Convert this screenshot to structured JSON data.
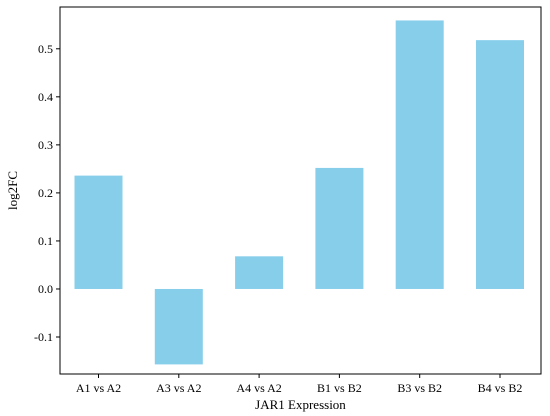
{
  "chart_data": {
    "type": "bar",
    "categories": [
      "A1 vs A2",
      "A3 vs A2",
      "A4 vs A2",
      "B1 vs B2",
      "B3 vs B2",
      "B4 vs B2"
    ],
    "values": [
      0.236,
      -0.157,
      0.068,
      0.252,
      0.559,
      0.518
    ],
    "title": "",
    "xlabel": "JAR1 Expression",
    "ylabel": "log2FC",
    "ylim": [
      -0.177,
      0.587
    ],
    "yticks": [
      -0.1,
      0.0,
      0.1,
      0.2,
      0.3,
      0.4,
      0.5
    ],
    "ytick_labels": [
      "-0.1",
      "0.0",
      "0.1",
      "0.2",
      "0.3",
      "0.4",
      "0.5"
    ],
    "bar_color": "#87ceeb",
    "grid": false,
    "legend": "none"
  }
}
